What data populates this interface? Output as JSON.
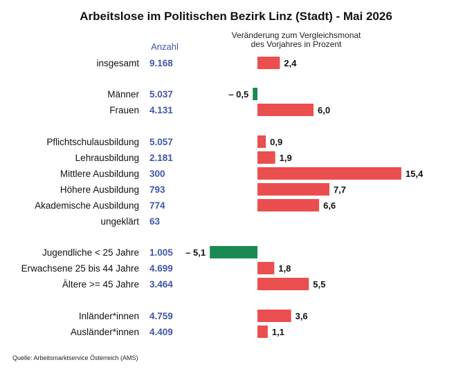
{
  "chart_data": {
    "type": "bar",
    "orientation": "horizontal",
    "title": "Arbeitslose im Politischen Bezirk Linz (Stadt) - Mai 2026",
    "count_header": "Anzahl",
    "change_header_line1": "Veränderung zum Vergleichsmonat",
    "change_header_line2": "des Vorjahres in Prozent",
    "source": "Quelle: Arbeitsmarktservice Österreich (AMS)",
    "colors": {
      "positive": "#eb4e4e",
      "negative": "#1a8a52",
      "count": "#3f56a8"
    },
    "rows": [
      {
        "label": "insgesamt",
        "count": "9.168",
        "change": 2.4,
        "change_label": "2,4"
      },
      {
        "label": "Männer",
        "count": "5.037",
        "change": -0.5,
        "change_label": "– 0,5"
      },
      {
        "label": "Frauen",
        "count": "4.131",
        "change": 6.0,
        "change_label": "6,0"
      },
      {
        "label": "Pflichtschulausbildung",
        "count": "5.057",
        "change": 0.9,
        "change_label": "0,9"
      },
      {
        "label": "Lehrausbildung",
        "count": "2.181",
        "change": 1.9,
        "change_label": "1,9"
      },
      {
        "label": "Mittlere Ausbildung",
        "count": "300",
        "change": 15.4,
        "change_label": "15,4"
      },
      {
        "label": "Höhere Ausbildung",
        "count": "793",
        "change": 7.7,
        "change_label": "7,7"
      },
      {
        "label": "Akademische Ausbildung",
        "count": "774",
        "change": 6.6,
        "change_label": "6,6"
      },
      {
        "label": "ungeklärt",
        "count": "63",
        "change": null,
        "change_label": ""
      },
      {
        "label": "Jugendliche < 25 Jahre",
        "count": "1.005",
        "change": -5.1,
        "change_label": "– 5,1"
      },
      {
        "label": "Erwachsene 25 bis 44 Jahre",
        "count": "4.699",
        "change": 1.8,
        "change_label": "1,8"
      },
      {
        "label": "Ältere >= 45 Jahre",
        "count": "3.464",
        "change": 5.5,
        "change_label": "5,5"
      },
      {
        "label": "Inländer*innen",
        "count": "4.759",
        "change": 3.6,
        "change_label": "3,6"
      },
      {
        "label": "Ausländer*innen",
        "count": "4.409",
        "change": 1.1,
        "change_label": "1,1"
      }
    ]
  }
}
